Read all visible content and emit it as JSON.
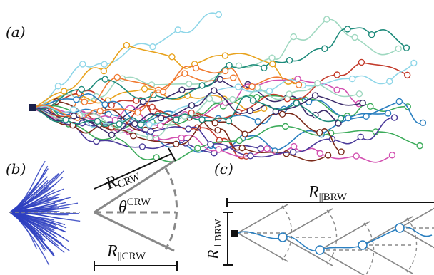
{
  "panels": {
    "a": {
      "label": "(a)"
    },
    "b": {
      "label": "(b)",
      "r_crw": "R",
      "r_crw_sub": "CRW",
      "theta": "θ",
      "theta_sup": "CRW",
      "r_par_crw": "R",
      "r_par_crw_sub": "||CRW"
    },
    "c": {
      "label": "(c)",
      "r_par_brw": "R",
      "r_par_brw_sub": "||BRW",
      "r_perp_brw": "R",
      "r_perp_brw_sub": "⊥BRW"
    }
  },
  "colors": {
    "source": "#1a1f4a",
    "fan": "#2e3fc0",
    "guide": "#888888",
    "path_c": "#2a7fc0",
    "paths": [
      "#e8a21c",
      "#3cab5a",
      "#2a7fc0",
      "#c33a2a",
      "#4a3a9a",
      "#d24fb0",
      "#8ed6e8",
      "#9fd8c0",
      "#7a2a1a",
      "#f07a30",
      "#3a2a6a",
      "#1c8a7a"
    ]
  }
}
